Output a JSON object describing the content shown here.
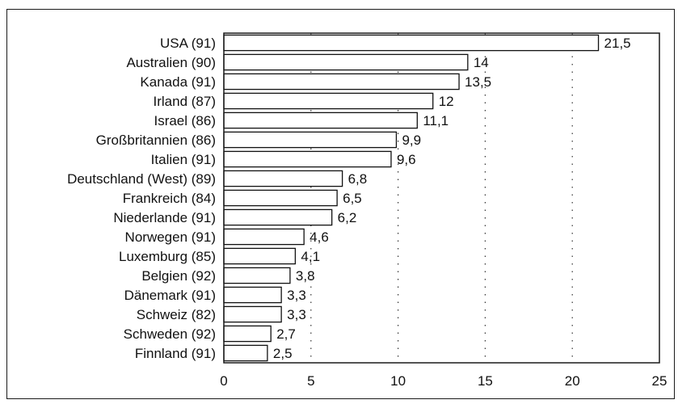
{
  "chart_data": {
    "type": "bar",
    "orientation": "horizontal",
    "categories": [
      "USA (91)",
      "Australien (90)",
      "Kanada (91)",
      "Irland (87)",
      "Israel (86)",
      "Großbritannien (86)",
      "Italien (91)",
      "Deutschland (West) (89)",
      "Frankreich (84)",
      "Niederlande (91)",
      "Norwegen (91)",
      "Luxemburg (85)",
      "Belgien (92)",
      "Dänemark (91)",
      "Schweiz (82)",
      "Schweden (92)",
      "Finnland (91)"
    ],
    "values": [
      21.5,
      14,
      13.5,
      12,
      11.1,
      9.9,
      9.6,
      6.8,
      6.5,
      6.2,
      4.6,
      4.1,
      3.8,
      3.3,
      3.3,
      2.7,
      2.5
    ],
    "value_labels": [
      "21,5",
      "14",
      "13,5",
      "12",
      "11,1",
      "9,9",
      "9,6",
      "6,8",
      "6,5",
      "6,2",
      "4,6",
      "4,1",
      "3,8",
      "3,3",
      "3,3",
      "2,7",
      "2,5"
    ],
    "xlim": [
      0,
      25
    ],
    "xticks": [
      0,
      5,
      10,
      15,
      20,
      25
    ],
    "xtick_labels": [
      "0",
      "5",
      "10",
      "15",
      "20",
      "25"
    ],
    "grid": "vertical dotted",
    "title": "",
    "xlabel": "",
    "ylabel": ""
  }
}
